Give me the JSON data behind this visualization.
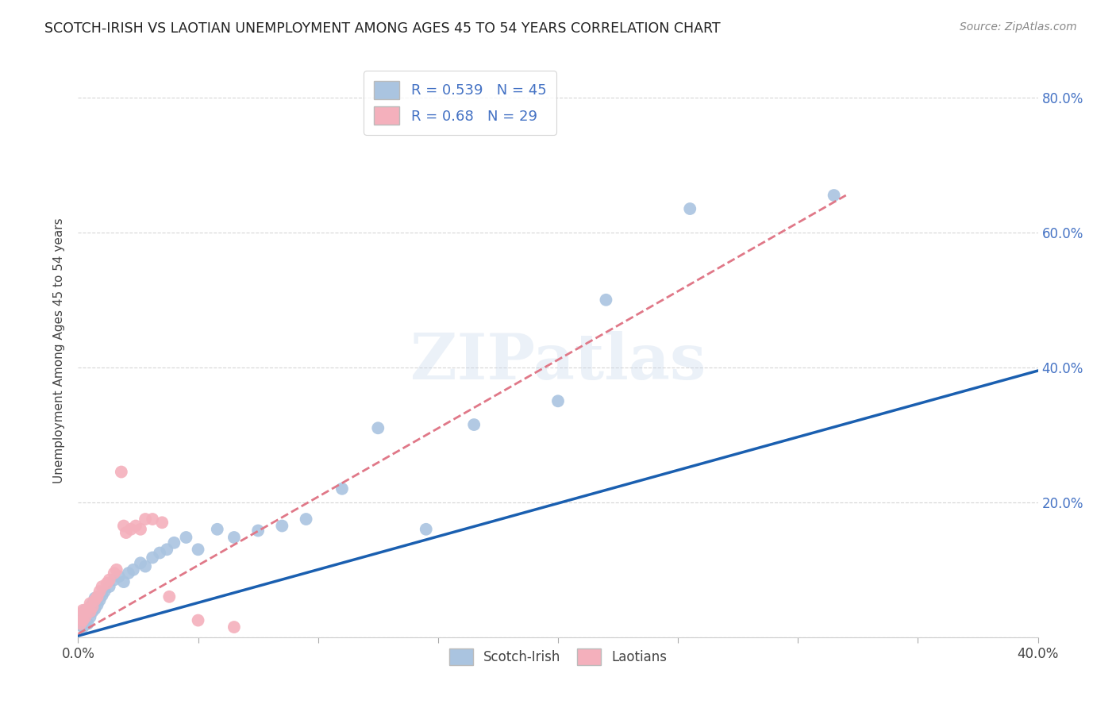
{
  "title": "SCOTCH-IRISH VS LAOTIAN UNEMPLOYMENT AMONG AGES 45 TO 54 YEARS CORRELATION CHART",
  "source": "Source: ZipAtlas.com",
  "ylabel": "Unemployment Among Ages 45 to 54 years",
  "xlim": [
    0,
    0.4
  ],
  "ylim": [
    0,
    0.85
  ],
  "scotch_irish_R": 0.539,
  "scotch_irish_N": 45,
  "laotian_R": 0.68,
  "laotian_N": 29,
  "scotch_irish_color": "#aac4e0",
  "laotian_color": "#f4b0bc",
  "scotch_irish_line_color": "#1a5fb0",
  "laotian_line_color": "#e07888",
  "background_color": "#ffffff",
  "grid_color": "#cccccc",
  "si_line_x0": 0.0,
  "si_line_y0": 0.002,
  "si_line_x1": 0.4,
  "si_line_y1": 0.395,
  "lao_line_x0": 0.0,
  "lao_line_y0": 0.005,
  "lao_line_x1": 0.32,
  "lao_line_y1": 0.655,
  "si_x": [
    0.001,
    0.001,
    0.002,
    0.002,
    0.003,
    0.003,
    0.004,
    0.004,
    0.005,
    0.005,
    0.006,
    0.006,
    0.007,
    0.007,
    0.008,
    0.009,
    0.01,
    0.011,
    0.013,
    0.015,
    0.017,
    0.019,
    0.021,
    0.023,
    0.026,
    0.028,
    0.031,
    0.034,
    0.037,
    0.04,
    0.045,
    0.05,
    0.058,
    0.065,
    0.075,
    0.085,
    0.095,
    0.11,
    0.125,
    0.145,
    0.165,
    0.2,
    0.22,
    0.255,
    0.315
  ],
  "si_y": [
    0.018,
    0.025,
    0.015,
    0.032,
    0.022,
    0.04,
    0.02,
    0.038,
    0.03,
    0.045,
    0.038,
    0.05,
    0.042,
    0.058,
    0.048,
    0.055,
    0.062,
    0.068,
    0.075,
    0.085,
    0.09,
    0.082,
    0.095,
    0.1,
    0.11,
    0.105,
    0.118,
    0.125,
    0.13,
    0.14,
    0.148,
    0.13,
    0.16,
    0.148,
    0.158,
    0.165,
    0.175,
    0.22,
    0.31,
    0.16,
    0.315,
    0.35,
    0.5,
    0.635,
    0.655
  ],
  "lao_x": [
    0.001,
    0.001,
    0.002,
    0.002,
    0.003,
    0.004,
    0.005,
    0.005,
    0.006,
    0.007,
    0.008,
    0.009,
    0.01,
    0.012,
    0.013,
    0.015,
    0.016,
    0.018,
    0.019,
    0.02,
    0.022,
    0.024,
    0.026,
    0.028,
    0.031,
    0.035,
    0.038,
    0.05,
    0.065
  ],
  "lao_y": [
    0.02,
    0.035,
    0.025,
    0.04,
    0.03,
    0.042,
    0.038,
    0.05,
    0.045,
    0.055,
    0.06,
    0.068,
    0.075,
    0.08,
    0.085,
    0.095,
    0.1,
    0.245,
    0.165,
    0.155,
    0.16,
    0.165,
    0.16,
    0.175,
    0.175,
    0.17,
    0.06,
    0.025,
    0.015
  ]
}
